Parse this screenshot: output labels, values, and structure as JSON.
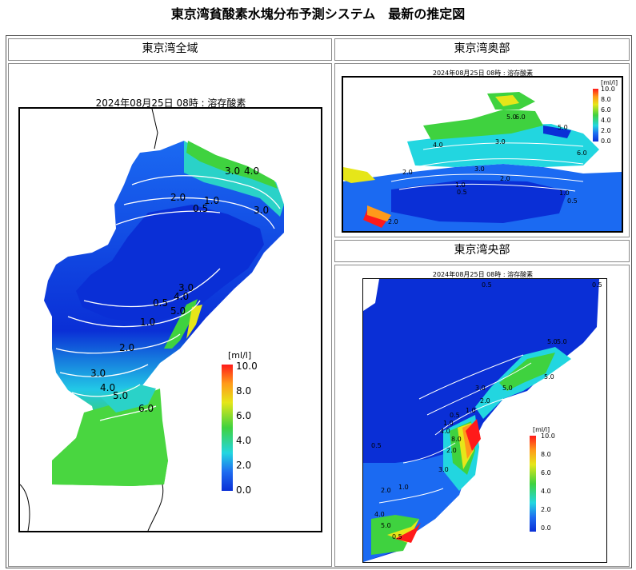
{
  "page_title": "東京湾貧酸素水塊分布予測システム　最新の推定図",
  "colors": {
    "land": "#ffffff",
    "deep_blue": "#0a2fd6",
    "mid_blue": "#1f6cf0",
    "cyan": "#22d6e0",
    "green": "#3fd23f",
    "yellow": "#e6e619",
    "orange": "#ff9a1a",
    "red": "#ff1a1a",
    "contour": "#ffffff"
  },
  "panels": {
    "whole": {
      "heading": "東京湾全域",
      "caption": "2024年08月25日 08時 : 溶存酸素",
      "contour_labels": [
        "3.0",
        "4.0",
        "2.0",
        "1.0",
        "0.5",
        "3.0",
        "3.0",
        "4.0",
        "0.5",
        "5.0",
        "1.0",
        "2.0",
        "3.0",
        "4.0",
        "5.0",
        "6.0"
      ],
      "colorbar": {
        "unit": "[ml/l]",
        "ticks": [
          "10.0",
          "8.0",
          "6.0",
          "4.0",
          "2.0",
          "0.0"
        ]
      }
    },
    "inner": {
      "heading": "東京湾奥部",
      "caption": "2024年08月25日 08時 : 溶存酸素",
      "contour_labels": [
        "5.0",
        "6.0",
        "5.0",
        "4.0",
        "3.0",
        "2.0",
        "3.0",
        "2.0",
        "1.0",
        "0.5",
        "1.0",
        "0.5",
        "6.0",
        "2.0"
      ],
      "colorbar": {
        "unit": "[ml/l]",
        "ticks": [
          "10.0",
          "8.0",
          "6.0",
          "4.0",
          "2.0",
          "0.0"
        ]
      }
    },
    "central": {
      "heading": "東京湾央部",
      "caption": "2024年08月25日 08時 : 溶存酸素",
      "contour_labels": [
        "0.5",
        "0.5",
        "5.0",
        "5.0",
        "2.0",
        "1.0",
        "0.5",
        "1.0",
        "4.0",
        "8.0",
        "2.0",
        "3.0",
        "0.5",
        "5.0",
        "3.0",
        "1.0",
        "2.0",
        "4.0",
        "5.0",
        "0.5",
        "5.0"
      ],
      "colorbar": {
        "unit": "[ml/l]",
        "ticks": [
          "10.0",
          "8.0",
          "6.0",
          "4.0",
          "2.0",
          "0.0"
        ]
      }
    }
  }
}
